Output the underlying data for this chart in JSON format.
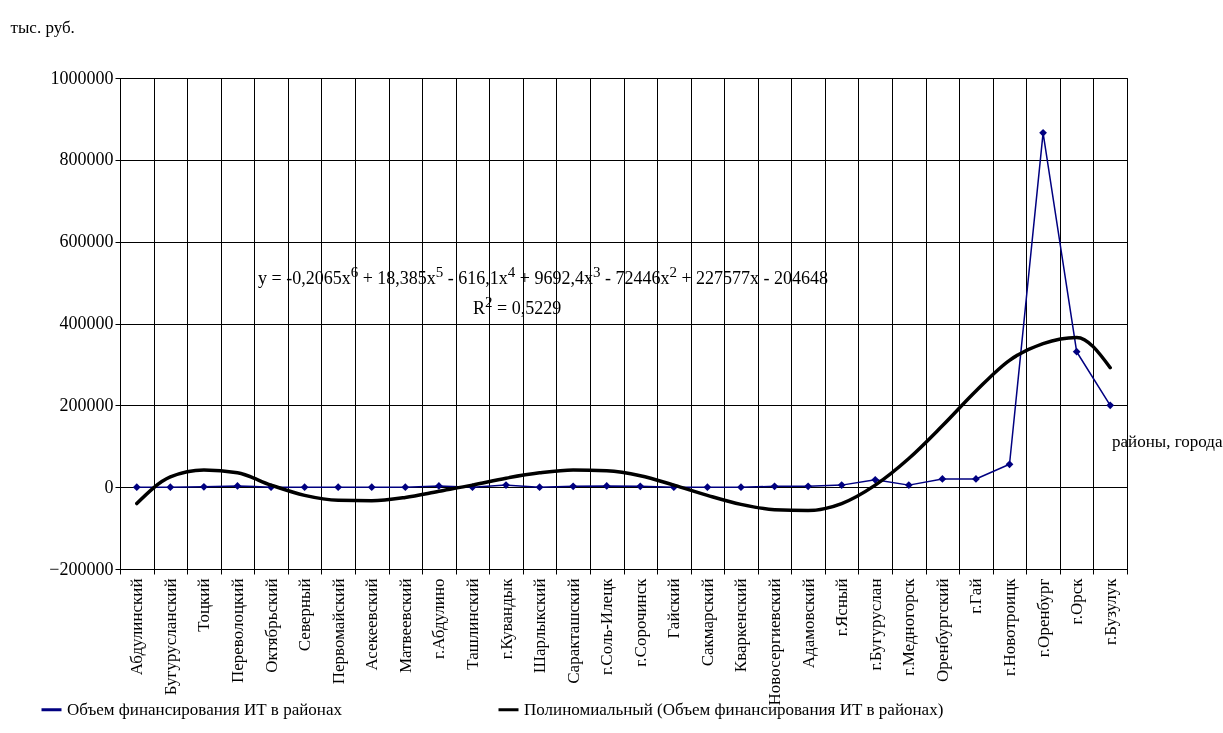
{
  "chart_data": {
    "type": "line",
    "ylabel": "тыс. руб.",
    "xlabel": "районы, города",
    "categories": [
      "Абдулинский",
      "Бугурусланский",
      "Тоцкий",
      "Переволоцкий",
      "Октябрьский",
      "Северный",
      "Первомайский",
      "Асекеевский",
      "Матвеевский",
      "г.Абдулино",
      "Ташлинский",
      "г.Кувандык",
      "Шарлыкский",
      "Саракташский",
      "г.Соль-Илецк",
      "г.Сорочинск",
      "Гайский",
      "Сакмарский",
      "Кваркенский",
      "Новосергиевский",
      "Адамовский",
      "г.Ясный",
      "г.Бугуруслан",
      "г.Медногорск",
      "Оренбургский",
      "г.Гай",
      "г.Новотроицк",
      "г.Оренбург",
      "г.Орск",
      "г.Бузулук"
    ],
    "series": [
      {
        "name": "Объем финансирования ИТ в районах",
        "color": "#000080",
        "marker": "diamond",
        "values": [
          0,
          0,
          1000,
          3000,
          0,
          0,
          0,
          0,
          0,
          3000,
          0,
          5000,
          0,
          2000,
          3000,
          2000,
          0,
          0,
          0,
          2000,
          2000,
          5000,
          18000,
          5000,
          20000,
          20000,
          56000,
          866000,
          331000,
          200000
        ]
      },
      {
        "name": "Полиномиальный (Объем финансирования ИТ в районах)",
        "color": "#000000",
        "marker": "none",
        "values": [
          -40000,
          25000,
          42000,
          35000,
          5000,
          -20000,
          -32000,
          -33000,
          -25000,
          -10000,
          5000,
          22000,
          35000,
          42000,
          40000,
          28000,
          5000,
          -20000,
          -42000,
          -55000,
          -57000,
          -40000,
          5000,
          70000,
          150000,
          235000,
          310000,
          351000,
          366000,
          292000
        ]
      }
    ],
    "ylim": [
      -200000,
      1000000
    ],
    "yticks": [
      -200000,
      0,
      200000,
      400000,
      600000,
      800000,
      1000000
    ],
    "grid": true,
    "legend": "bottom",
    "annotations": [
      "y = -0,2065x$^{6}$ + 18,385x$^{5}$ - 616,1x$^{4}$ + 9692,4x$^{3}$ - 72446x$^{2}$ + 227577x - 204648",
      "R$^{2}$ = 0,5229"
    ]
  }
}
